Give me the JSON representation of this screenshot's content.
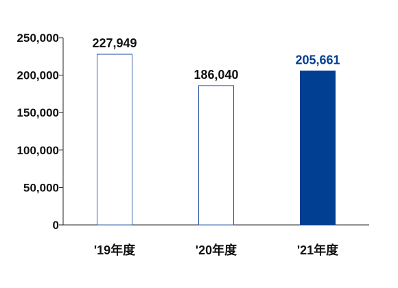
{
  "chart_data": {
    "type": "bar",
    "categories": [
      "'19年度",
      "'20年度",
      "'21年度"
    ],
    "values": [
      227949,
      186040,
      205661
    ],
    "value_labels": [
      "227,949",
      "186,040",
      "205,661"
    ],
    "ylim": [
      0,
      250000
    ],
    "yticks": [
      0,
      50000,
      100000,
      150000,
      200000,
      250000
    ],
    "ytick_labels": [
      "0",
      "50,000",
      "100,000",
      "150,000",
      "200,000",
      "250,000"
    ],
    "highlight_index": 2,
    "title": "",
    "xlabel": "",
    "ylabel": "",
    "grid": false,
    "colors": {
      "outline": "#2f5aa8",
      "highlight_fill": "#003f91",
      "highlight_label": "#003f91",
      "label": "#111111",
      "axis": "#222222"
    }
  }
}
